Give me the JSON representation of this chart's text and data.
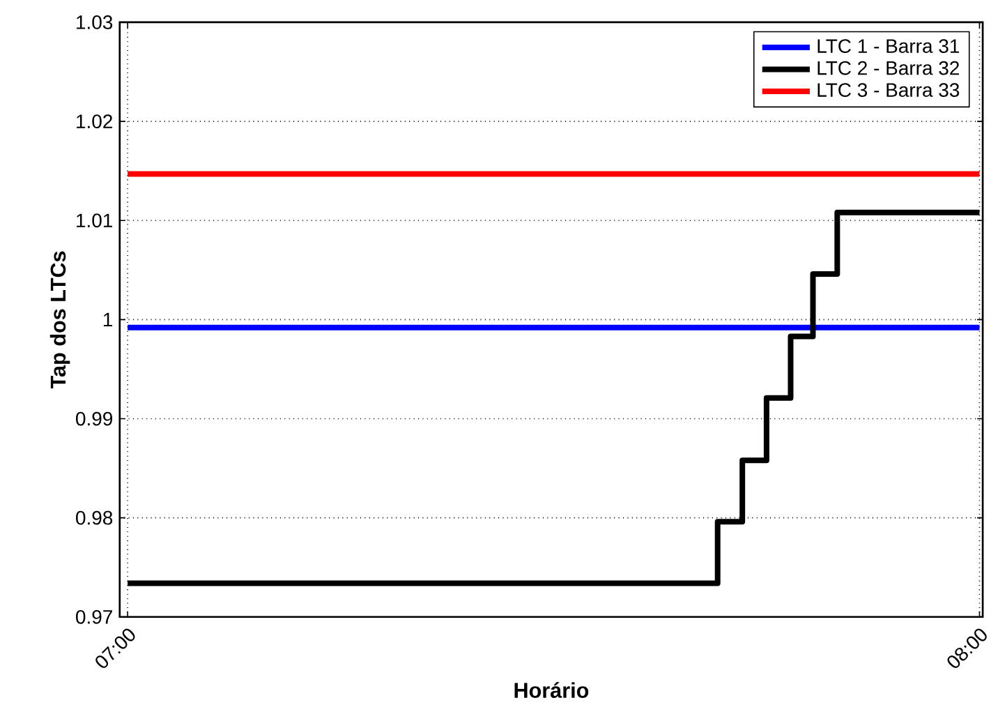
{
  "chart_data": {
    "type": "line",
    "xlabel": "Horário",
    "ylabel": "Tap dos LTCs",
    "xlim": [
      6.9907,
      8.0038
    ],
    "ylim": [
      0.97,
      1.03
    ],
    "xticks": [
      {
        "value": 7,
        "label": "07:00"
      },
      {
        "value": 8,
        "label": "08:00"
      }
    ],
    "yticks": [
      0.97,
      0.98,
      0.99,
      1,
      1.01,
      1.02,
      1.03
    ],
    "grid": true,
    "legend": "top right",
    "line_style": "solid",
    "series": [
      {
        "name": "LTC 1 - Barra 31",
        "color": "#0000ff",
        "x": [
          7,
          8
        ],
        "values": [
          0.9992,
          0.9992
        ]
      },
      {
        "name": "LTC 2 - Barra 32",
        "color": "#000000",
        "type": "step",
        "x": [
          7,
          7.6926,
          7.7216,
          7.75,
          7.7783,
          7.8045,
          7.833,
          8
        ],
        "values": [
          0.9734,
          0.9796,
          0.9858,
          0.9921,
          0.9983,
          1.0046,
          1.0108,
          1.0108
        ]
      },
      {
        "name": "LTC 3 - Barra 33",
        "color": "#ff0000",
        "x": [
          7,
          8
        ],
        "values": [
          1.0147,
          1.0147
        ]
      }
    ]
  }
}
